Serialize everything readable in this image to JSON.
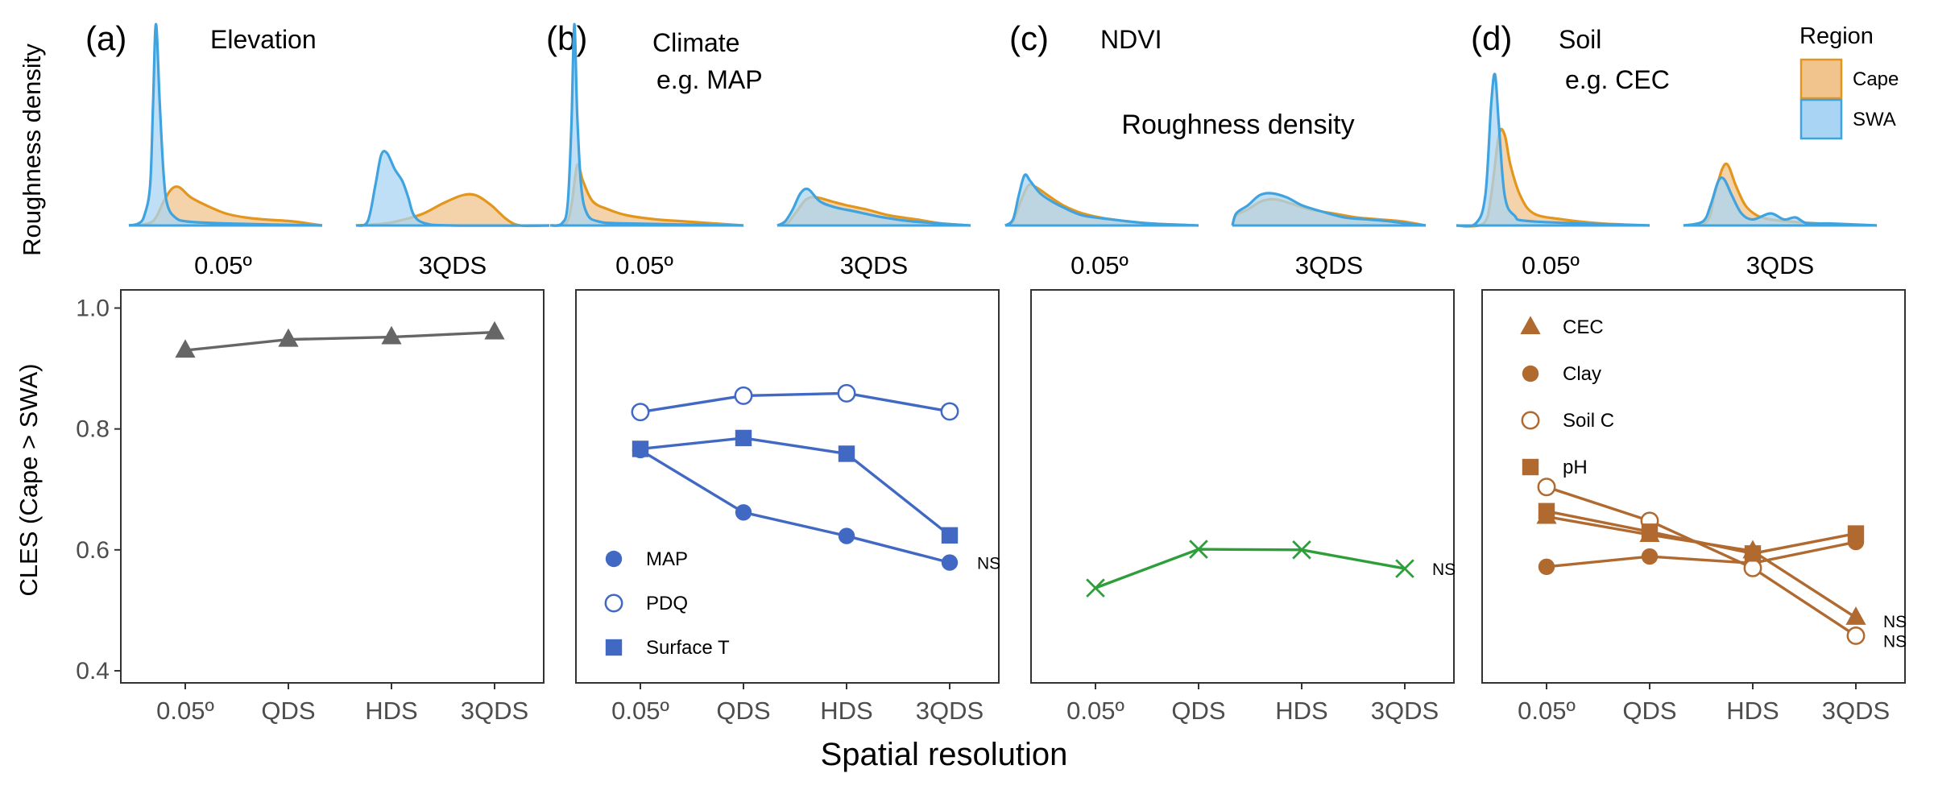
{
  "figure": {
    "y_axis_title_top": "Roughness density",
    "y_axis_title_bottom": "CLES (Cape > SWA)",
    "x_axis_title": "Spatial resolution",
    "center_annotation": "Roughness density",
    "density_labels": [
      "0.05º",
      "3QDS"
    ],
    "legend_title": "Region",
    "legend_items": [
      {
        "name": "Cape",
        "fill": "#F2C48D",
        "stroke": "#E3961C"
      },
      {
        "name": "SWA",
        "fill": "#A9D4F3",
        "stroke": "#3FA3E0"
      }
    ]
  },
  "panels": [
    {
      "letter": "(a)",
      "title_lines": [
        "Elevation"
      ]
    },
    {
      "letter": "(b)",
      "title_lines": [
        "Climate",
        "e.g. MAP"
      ]
    },
    {
      "letter": "(c)",
      "title_lines": [
        "NDVI"
      ]
    },
    {
      "letter": "(d)",
      "title_lines": [
        "Soil",
        "e.g. CEC"
      ]
    }
  ],
  "chart_data": [
    {
      "type": "line",
      "panel": "a",
      "categories": [
        "0.05º",
        "QDS",
        "HDS",
        "3QDS"
      ],
      "ylim": [
        0.38,
        1.03
      ],
      "yticks": [
        "0.4",
        "0.6",
        "0.8",
        "1.0"
      ],
      "legend": false,
      "series": [
        {
          "marker": "triangle",
          "color": "#666666",
          "values": [
            0.93,
            0.948,
            0.952,
            0.96
          ],
          "end_label": ""
        }
      ]
    },
    {
      "type": "line",
      "panel": "b",
      "categories": [
        "0.05º",
        "QDS",
        "HDS",
        "3QDS"
      ],
      "ylim": [
        0.38,
        1.03
      ],
      "legend": true,
      "series": [
        {
          "name": "MAP",
          "marker": "circle",
          "color": "#4169C4",
          "values": [
            0.765,
            0.662,
            0.623,
            0.579
          ],
          "end_label": "NS"
        },
        {
          "name": "PDQ",
          "marker": "circle-open",
          "color": "#4169C4",
          "values": [
            0.828,
            0.855,
            0.859,
            0.829
          ],
          "end_label": ""
        },
        {
          "name": "Surface T",
          "marker": "square",
          "color": "#4169C4",
          "values": [
            0.767,
            0.785,
            0.759,
            0.624
          ],
          "end_label": ""
        }
      ]
    },
    {
      "type": "line",
      "panel": "c",
      "categories": [
        "0.05º",
        "QDS",
        "HDS",
        "3QDS"
      ],
      "ylim": [
        0.38,
        1.03
      ],
      "legend": false,
      "series": [
        {
          "marker": "x",
          "color": "#2E9E3A",
          "values": [
            0.537,
            0.601,
            0.6,
            0.569
          ],
          "end_label": "NS"
        }
      ]
    },
    {
      "type": "line",
      "panel": "d",
      "categories": [
        "0.05º",
        "QDS",
        "HDS",
        "3QDS"
      ],
      "ylim": [
        0.38,
        1.03
      ],
      "legend": true,
      "series": [
        {
          "name": "CEC",
          "marker": "triangle",
          "color": "#B0692F",
          "values": [
            0.655,
            0.625,
            0.598,
            0.488
          ],
          "end_label": "NS"
        },
        {
          "name": "Clay",
          "marker": "circle",
          "color": "#B0692F",
          "values": [
            0.572,
            0.589,
            0.578,
            0.613
          ],
          "end_label": ""
        },
        {
          "name": "Soil C",
          "marker": "circle-open",
          "color": "#B0692F",
          "values": [
            0.704,
            0.648,
            0.57,
            0.458
          ],
          "end_label": "NS"
        },
        {
          "name": "pH",
          "marker": "square",
          "color": "#B0692F",
          "values": [
            0.664,
            0.63,
            0.594,
            0.627
          ],
          "end_label": ""
        }
      ]
    }
  ],
  "densities": [
    {
      "panel": "a",
      "resolution": "0.05º",
      "swa": [
        [
          0.0,
          0.0
        ],
        [
          0.05,
          0.01
        ],
        [
          0.08,
          0.05
        ],
        [
          0.11,
          0.2
        ],
        [
          0.125,
          0.6
        ],
        [
          0.14,
          1.0
        ],
        [
          0.16,
          0.6
        ],
        [
          0.18,
          0.25
        ],
        [
          0.2,
          0.1
        ],
        [
          0.24,
          0.04
        ],
        [
          0.3,
          0.02
        ],
        [
          0.5,
          0.01
        ],
        [
          1.0,
          0.0
        ]
      ],
      "cape": [
        [
          0.0,
          0.0
        ],
        [
          0.1,
          0.01
        ],
        [
          0.14,
          0.04
        ],
        [
          0.18,
          0.12
        ],
        [
          0.22,
          0.18
        ],
        [
          0.26,
          0.19
        ],
        [
          0.32,
          0.14
        ],
        [
          0.4,
          0.1
        ],
        [
          0.5,
          0.06
        ],
        [
          0.6,
          0.04
        ],
        [
          0.7,
          0.03
        ],
        [
          0.85,
          0.02
        ],
        [
          1.0,
          0.0
        ]
      ]
    },
    {
      "panel": "a",
      "resolution": "3QDS",
      "swa": [
        [
          0.0,
          0.0
        ],
        [
          0.06,
          0.02
        ],
        [
          0.1,
          0.2
        ],
        [
          0.13,
          0.35
        ],
        [
          0.16,
          0.36
        ],
        [
          0.2,
          0.28
        ],
        [
          0.24,
          0.22
        ],
        [
          0.27,
          0.14
        ],
        [
          0.3,
          0.05
        ],
        [
          0.36,
          0.01
        ],
        [
          0.5,
          0.0
        ],
        [
          1.0,
          0.0
        ]
      ],
      "cape": [
        [
          0.0,
          0.0
        ],
        [
          0.15,
          0.01
        ],
        [
          0.25,
          0.03
        ],
        [
          0.35,
          0.06
        ],
        [
          0.45,
          0.11
        ],
        [
          0.55,
          0.15
        ],
        [
          0.62,
          0.15
        ],
        [
          0.7,
          0.1
        ],
        [
          0.78,
          0.03
        ],
        [
          0.85,
          0.0
        ],
        [
          1.0,
          0.0
        ]
      ]
    },
    {
      "panel": "b",
      "resolution": "0.05º",
      "swa": [
        [
          0.0,
          0.0
        ],
        [
          0.06,
          0.01
        ],
        [
          0.09,
          0.1
        ],
        [
          0.11,
          0.5
        ],
        [
          0.125,
          1.0
        ],
        [
          0.14,
          0.55
        ],
        [
          0.16,
          0.2
        ],
        [
          0.19,
          0.06
        ],
        [
          0.25,
          0.02
        ],
        [
          0.4,
          0.01
        ],
        [
          1.0,
          0.0
        ]
      ],
      "cape": [
        [
          0.0,
          0.0
        ],
        [
          0.08,
          0.01
        ],
        [
          0.11,
          0.1
        ],
        [
          0.14,
          0.3
        ],
        [
          0.17,
          0.22
        ],
        [
          0.22,
          0.12
        ],
        [
          0.3,
          0.08
        ],
        [
          0.4,
          0.05
        ],
        [
          0.55,
          0.03
        ],
        [
          0.7,
          0.02
        ],
        [
          1.0,
          0.0
        ]
      ]
    },
    {
      "panel": "b",
      "resolution": "3QDS",
      "swa": [
        [
          0.0,
          0.0
        ],
        [
          0.04,
          0.02
        ],
        [
          0.08,
          0.08
        ],
        [
          0.12,
          0.16
        ],
        [
          0.16,
          0.18
        ],
        [
          0.22,
          0.12
        ],
        [
          0.3,
          0.09
        ],
        [
          0.4,
          0.07
        ],
        [
          0.55,
          0.04
        ],
        [
          0.7,
          0.02
        ],
        [
          1.0,
          0.0
        ]
      ],
      "cape": [
        [
          0.0,
          0.0
        ],
        [
          0.05,
          0.01
        ],
        [
          0.1,
          0.07
        ],
        [
          0.15,
          0.13
        ],
        [
          0.2,
          0.14
        ],
        [
          0.28,
          0.12
        ],
        [
          0.36,
          0.1
        ],
        [
          0.46,
          0.08
        ],
        [
          0.58,
          0.05
        ],
        [
          0.72,
          0.03
        ],
        [
          0.85,
          0.01
        ],
        [
          1.0,
          0.0
        ]
      ]
    },
    {
      "panel": "c",
      "resolution": "0.05º",
      "swa": [
        [
          0.0,
          0.0
        ],
        [
          0.04,
          0.03
        ],
        [
          0.07,
          0.15
        ],
        [
          0.1,
          0.25
        ],
        [
          0.13,
          0.22
        ],
        [
          0.18,
          0.16
        ],
        [
          0.24,
          0.12
        ],
        [
          0.3,
          0.09
        ],
        [
          0.4,
          0.05
        ],
        [
          0.55,
          0.03
        ],
        [
          0.75,
          0.01
        ],
        [
          1.0,
          0.0
        ]
      ],
      "cape": [
        [
          0.0,
          0.0
        ],
        [
          0.04,
          0.02
        ],
        [
          0.08,
          0.12
        ],
        [
          0.12,
          0.2
        ],
        [
          0.16,
          0.19
        ],
        [
          0.22,
          0.15
        ],
        [
          0.3,
          0.1
        ],
        [
          0.4,
          0.06
        ],
        [
          0.55,
          0.03
        ],
        [
          0.75,
          0.01
        ],
        [
          1.0,
          0.0
        ]
      ]
    },
    {
      "panel": "c",
      "resolution": "3QDS",
      "swa": [
        [
          0.0,
          0.0
        ],
        [
          0.02,
          0.06
        ],
        [
          0.08,
          0.1
        ],
        [
          0.14,
          0.15
        ],
        [
          0.2,
          0.16
        ],
        [
          0.28,
          0.14
        ],
        [
          0.36,
          0.1
        ],
        [
          0.46,
          0.07
        ],
        [
          0.58,
          0.04
        ],
        [
          0.7,
          0.03
        ],
        [
          0.82,
          0.02
        ],
        [
          0.9,
          0.01
        ],
        [
          1.0,
          0.0
        ]
      ],
      "cape": [
        [
          0.0,
          0.0
        ],
        [
          0.02,
          0.05
        ],
        [
          0.08,
          0.08
        ],
        [
          0.15,
          0.12
        ],
        [
          0.22,
          0.13
        ],
        [
          0.3,
          0.11
        ],
        [
          0.4,
          0.08
        ],
        [
          0.52,
          0.06
        ],
        [
          0.64,
          0.04
        ],
        [
          0.76,
          0.03
        ],
        [
          0.88,
          0.02
        ],
        [
          1.0,
          0.0
        ]
      ]
    },
    {
      "panel": "d",
      "resolution": "0.05º",
      "swa": [
        [
          0.0,
          0.0
        ],
        [
          0.1,
          0.01
        ],
        [
          0.15,
          0.15
        ],
        [
          0.18,
          0.6
        ],
        [
          0.2,
          0.75
        ],
        [
          0.22,
          0.5
        ],
        [
          0.25,
          0.15
        ],
        [
          0.3,
          0.05
        ],
        [
          0.4,
          0.02
        ],
        [
          1.0,
          0.0
        ]
      ],
      "cape": [
        [
          0.0,
          0.0
        ],
        [
          0.14,
          0.01
        ],
        [
          0.18,
          0.15
        ],
        [
          0.22,
          0.45
        ],
        [
          0.25,
          0.45
        ],
        [
          0.28,
          0.3
        ],
        [
          0.33,
          0.15
        ],
        [
          0.4,
          0.06
        ],
        [
          0.55,
          0.03
        ],
        [
          0.75,
          0.01
        ],
        [
          1.0,
          0.0
        ]
      ]
    },
    {
      "panel": "d",
      "resolution": "3QDS",
      "swa": [
        [
          0.0,
          0.0
        ],
        [
          0.1,
          0.02
        ],
        [
          0.14,
          0.1
        ],
        [
          0.18,
          0.22
        ],
        [
          0.21,
          0.23
        ],
        [
          0.25,
          0.15
        ],
        [
          0.3,
          0.06
        ],
        [
          0.36,
          0.03
        ],
        [
          0.45,
          0.06
        ],
        [
          0.52,
          0.03
        ],
        [
          0.58,
          0.04
        ],
        [
          0.64,
          0.01
        ],
        [
          0.75,
          0.01
        ],
        [
          1.0,
          0.0
        ]
      ],
      "cape": [
        [
          0.0,
          0.0
        ],
        [
          0.12,
          0.02
        ],
        [
          0.16,
          0.15
        ],
        [
          0.2,
          0.28
        ],
        [
          0.23,
          0.3
        ],
        [
          0.27,
          0.2
        ],
        [
          0.32,
          0.1
        ],
        [
          0.38,
          0.05
        ],
        [
          0.45,
          0.03
        ],
        [
          0.55,
          0.02
        ],
        [
          0.7,
          0.01
        ],
        [
          1.0,
          0.0
        ]
      ]
    }
  ]
}
